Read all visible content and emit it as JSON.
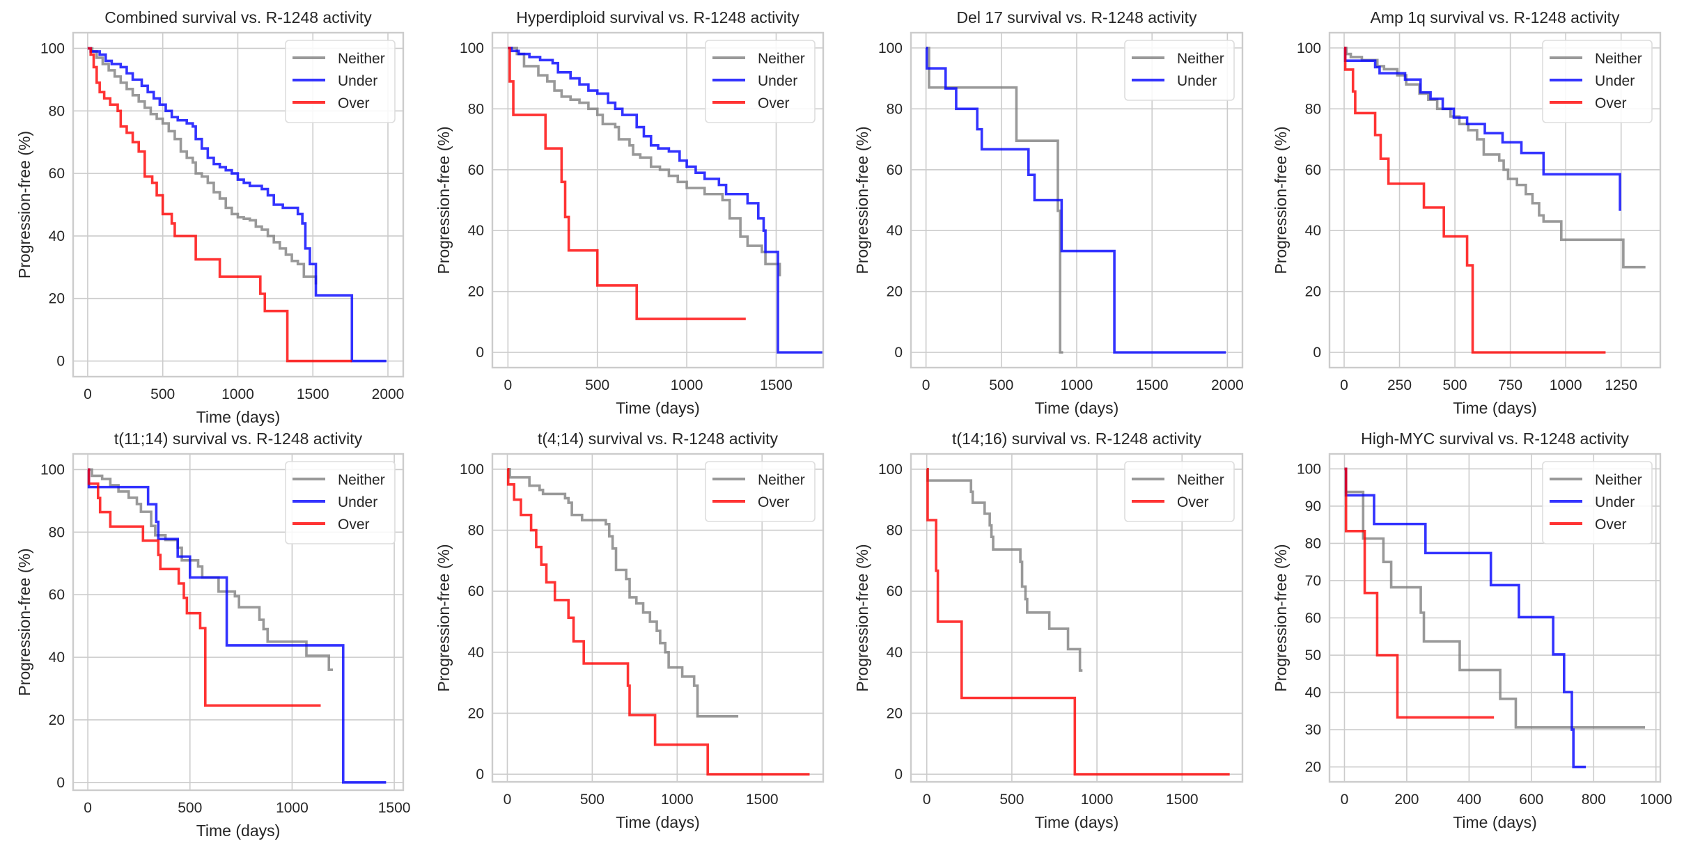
{
  "colors": {
    "Neither": "#808080",
    "Under": "#0000ff",
    "Over": "#ff0000"
  },
  "chart_data": [
    {
      "type": "line",
      "title": "Combined survival vs. R-1248 activity",
      "xlabel": "Time (days)",
      "ylabel": "Progression-free (%)",
      "xlim": [
        -97,
        2102
      ],
      "ylim": [
        -5,
        105
      ],
      "xticks": [
        0,
        500,
        1000,
        1500,
        2000
      ],
      "yticks": [
        0,
        20,
        40,
        60,
        80,
        100
      ],
      "grid": true,
      "legend": "top-right",
      "step": true,
      "series": [
        {
          "name": "Neither",
          "x": [
            0,
            30,
            60,
            100,
            140,
            180,
            220,
            260,
            300,
            340,
            380,
            420,
            460,
            500,
            540,
            580,
            620,
            660,
            700,
            720,
            760,
            800,
            840,
            880,
            920,
            960,
            1000,
            1040,
            1080,
            1120,
            1160,
            1200,
            1240,
            1280,
            1320,
            1360,
            1400,
            1440,
            1480,
            1520
          ],
          "y": [
            100,
            99,
            97,
            95,
            93,
            91,
            89,
            87,
            85,
            83,
            81,
            79,
            77.5,
            76,
            73.5,
            71,
            67,
            65,
            63.5,
            60,
            59,
            57,
            54,
            52,
            49,
            47,
            46,
            45.5,
            45,
            43,
            42,
            40,
            38,
            36,
            34,
            32,
            31,
            27,
            27,
            24.5
          ]
        },
        {
          "name": "Under",
          "x": [
            0,
            20,
            80,
            120,
            160,
            220,
            260,
            300,
            360,
            400,
            440,
            480,
            520,
            560,
            600,
            660,
            700,
            720,
            760,
            800,
            840,
            880,
            920,
            960,
            1000,
            1040,
            1080,
            1160,
            1200,
            1240,
            1300,
            1400,
            1430,
            1450,
            1480,
            1520,
            1760,
            1990
          ],
          "y": [
            100,
            99,
            98,
            96,
            95,
            94,
            92,
            90,
            88,
            86,
            84,
            82,
            80,
            78,
            77,
            76,
            75,
            71,
            68,
            65,
            63,
            62,
            61,
            60,
            58,
            57,
            56,
            55,
            53,
            50,
            49,
            47,
            44,
            36,
            31,
            21,
            0,
            0
          ]
        },
        {
          "name": "Over",
          "x": [
            0,
            20,
            40,
            60,
            80,
            110,
            150,
            200,
            220,
            260,
            300,
            340,
            380,
            430,
            460,
            500,
            560,
            580,
            720,
            880,
            1150,
            1180,
            1330,
            1760
          ],
          "y": [
            100,
            98,
            94,
            89,
            86,
            84,
            82,
            80,
            75,
            73,
            70,
            67,
            59,
            57,
            53,
            47,
            44,
            40,
            32.5,
            27,
            21.5,
            16,
            0,
            0
          ]
        }
      ]
    },
    {
      "type": "line",
      "title": "Hyperdiploid survival vs. R-1248 activity",
      "xlabel": "Time (days)",
      "ylabel": "Progression-free (%)",
      "xlim": [
        -87,
        1763
      ],
      "ylim": [
        -5,
        105
      ],
      "xticks": [
        0,
        500,
        1000,
        1500
      ],
      "yticks": [
        0,
        20,
        40,
        60,
        80,
        100
      ],
      "grid": true,
      "legend": "top-right",
      "step": true,
      "series": [
        {
          "name": "Neither",
          "x": [
            0,
            50,
            90,
            170,
            220,
            260,
            300,
            350,
            400,
            450,
            500,
            530,
            600,
            620,
            680,
            700,
            740,
            800,
            850,
            900,
            950,
            1000,
            1100,
            1200,
            1240,
            1300,
            1340,
            1420,
            1440,
            1520
          ],
          "y": [
            100,
            98,
            94,
            91,
            89,
            86,
            84,
            83,
            82,
            80,
            78,
            75,
            74,
            70,
            68,
            65,
            64,
            61,
            60,
            58,
            56,
            54,
            52,
            50,
            44,
            38,
            35,
            33,
            29,
            25
          ]
        },
        {
          "name": "Under",
          "x": [
            0,
            20,
            60,
            120,
            180,
            250,
            280,
            350,
            400,
            450,
            500,
            560,
            600,
            640,
            700,
            720,
            760,
            800,
            840,
            900,
            960,
            1000,
            1050,
            1100,
            1180,
            1220,
            1340,
            1400,
            1430,
            1440,
            1510,
            1760
          ],
          "y": [
            100,
            99,
            98,
            97,
            96,
            95,
            92,
            90,
            88,
            86,
            85,
            82,
            80,
            78,
            78,
            74,
            71,
            68,
            67,
            66,
            63,
            61,
            59,
            57,
            55,
            52,
            49,
            44,
            40,
            33,
            0,
            0
          ]
        },
        {
          "name": "Over",
          "x": [
            0,
            10,
            30,
            210,
            300,
            320,
            340,
            500,
            720,
            1330
          ],
          "y": [
            100,
            89,
            78,
            67,
            56,
            44.5,
            33.5,
            22,
            11,
            11
          ]
        }
      ]
    },
    {
      "type": "line",
      "title": "Del 17 survival vs. R-1248 activity",
      "xlabel": "Time (days)",
      "ylabel": "Progression-free (%)",
      "xlim": [
        -100,
        2100
      ],
      "ylim": [
        -5,
        105
      ],
      "xticks": [
        0,
        500,
        1000,
        1500,
        2000
      ],
      "yticks": [
        0,
        20,
        40,
        60,
        80,
        100
      ],
      "grid": true,
      "legend": "top-right",
      "step": true,
      "series": [
        {
          "name": "Neither",
          "x": [
            0,
            20,
            600,
            875,
            890,
            910
          ],
          "y": [
            100,
            87,
            69.5,
            46.5,
            0,
            0
          ]
        },
        {
          "name": "Under",
          "x": [
            0,
            5,
            130,
            200,
            340,
            370,
            680,
            720,
            900,
            1250,
            1990
          ],
          "y": [
            100,
            93.3,
            86.7,
            80,
            73.3,
            66.7,
            58.3,
            50,
            33.3,
            0,
            0
          ]
        }
      ]
    },
    {
      "type": "line",
      "title": "Amp 1q survival vs. R-1248 activity",
      "xlabel": "Time (days)",
      "ylabel": "Progression-free (%)",
      "xlim": [
        -66,
        1427
      ],
      "ylim": [
        -5,
        105
      ],
      "xticks": [
        0,
        250,
        500,
        750,
        1000,
        1250
      ],
      "yticks": [
        0,
        20,
        40,
        60,
        80,
        100
      ],
      "grid": true,
      "legend": "top-right",
      "step": true,
      "series": [
        {
          "name": "Neither",
          "x": [
            0,
            10,
            30,
            80,
            150,
            180,
            240,
            280,
            340,
            380,
            420,
            480,
            520,
            560,
            600,
            630,
            700,
            720,
            740,
            780,
            820,
            850,
            880,
            900,
            980,
            1260,
            1360
          ],
          "y": [
            100,
            98,
            97,
            96,
            94,
            93,
            91,
            88,
            85,
            83,
            80,
            77.5,
            75,
            73,
            70,
            65,
            63,
            60,
            57,
            55,
            52,
            49,
            45,
            43,
            37,
            28,
            28
          ]
        },
        {
          "name": "Under",
          "x": [
            0,
            5,
            140,
            160,
            275,
            345,
            390,
            445,
            495,
            555,
            635,
            715,
            800,
            900,
            1245
          ],
          "y": [
            100,
            95.8,
            93.7,
            91.7,
            89.6,
            85.4,
            83.3,
            80,
            77.1,
            75,
            72,
            69,
            65.5,
            58.5,
            46.5
          ]
        },
        {
          "name": "Over",
          "x": [
            0,
            5,
            40,
            50,
            140,
            165,
            200,
            360,
            450,
            555,
            580,
            1180
          ],
          "y": [
            100,
            92.9,
            85.7,
            78.6,
            71.4,
            63.6,
            55.4,
            47.6,
            38.1,
            28.6,
            0,
            0
          ]
        }
      ]
    },
    {
      "type": "line",
      "title": "t(11;14) survival vs. R-1248 activity",
      "xlabel": "Time (days)",
      "ylabel": "Progression-free (%)",
      "xlim": [
        -72,
        1544
      ],
      "ylim": [
        -2.5,
        105
      ],
      "xticks": [
        0,
        500,
        1000,
        1500
      ],
      "yticks": [
        0,
        20,
        40,
        60,
        80,
        100
      ],
      "grid": true,
      "legend": "top-right",
      "step": true,
      "series": [
        {
          "name": "Neither",
          "x": [
            0,
            20,
            70,
            110,
            150,
            200,
            240,
            260,
            310,
            330,
            380,
            440,
            460,
            540,
            560,
            640,
            720,
            740,
            840,
            860,
            880,
            1070,
            1180,
            1200
          ],
          "y": [
            100,
            98,
            97,
            95,
            93,
            91,
            89,
            86.5,
            82,
            79,
            77.5,
            75,
            71,
            69,
            65.5,
            61,
            59.5,
            56,
            52,
            49,
            45,
            40.5,
            36,
            36
          ]
        },
        {
          "name": "Under",
          "x": [
            0,
            5,
            295,
            335,
            345,
            440,
            500,
            680,
            1250,
            1460
          ],
          "y": [
            100,
            94.4,
            88.9,
            83.3,
            77.8,
            72.2,
            65.5,
            43.8,
            0,
            0
          ]
        },
        {
          "name": "Over",
          "x": [
            0,
            5,
            50,
            60,
            110,
            270,
            345,
            355,
            445,
            470,
            485,
            550,
            575,
            1140
          ],
          "y": [
            100,
            95.5,
            90.9,
            86.4,
            81.8,
            77.3,
            72.7,
            68.2,
            63.6,
            59,
            54.1,
            49.3,
            24.6,
            24.6
          ]
        }
      ]
    },
    {
      "type": "line",
      "title": "t(4;14) survival vs. R-1248 activity",
      "xlabel": "Time (days)",
      "ylabel": "Progression-free (%)",
      "xlim": [
        -88,
        1860
      ],
      "ylim": [
        -2.5,
        105
      ],
      "xticks": [
        0,
        500,
        1000,
        1500
      ],
      "yticks": [
        0,
        20,
        40,
        60,
        80,
        100
      ],
      "grid": true,
      "legend": "top-right",
      "step": true,
      "series": [
        {
          "name": "Neither",
          "x": [
            0,
            15,
            130,
            190,
            210,
            340,
            360,
            380,
            440,
            580,
            600,
            620,
            640,
            700,
            720,
            760,
            800,
            840,
            880,
            900,
            930,
            950,
            1030,
            1100,
            1120,
            1360
          ],
          "y": [
            100,
            97.3,
            94.6,
            93.2,
            91.9,
            90.5,
            89,
            85,
            83.3,
            82,
            78,
            74,
            67,
            64,
            58,
            56,
            53,
            50,
            47,
            43,
            40,
            35,
            32,
            29,
            19,
            19
          ]
        },
        {
          "name": "Over",
          "x": [
            0,
            5,
            40,
            80,
            140,
            170,
            200,
            230,
            280,
            360,
            390,
            450,
            710,
            720,
            870,
            1180,
            1780
          ],
          "y": [
            100,
            95,
            90,
            85,
            80,
            74.5,
            68.7,
            62.9,
            57.1,
            51.3,
            43.6,
            36.3,
            29,
            19.4,
            9.7,
            0,
            0
          ]
        }
      ]
    },
    {
      "type": "line",
      "title": "t(14;16) survival vs. R-1248 activity",
      "xlabel": "Time (days)",
      "ylabel": "Progression-free (%)",
      "xlim": [
        -93,
        1855
      ],
      "ylim": [
        -2.5,
        105
      ],
      "xticks": [
        0,
        500,
        1000,
        1500
      ],
      "yticks": [
        0,
        20,
        40,
        60,
        80,
        100
      ],
      "grid": true,
      "legend": "top-right",
      "step": true,
      "series": [
        {
          "name": "Neither",
          "x": [
            0,
            5,
            260,
            270,
            340,
            370,
            380,
            390,
            550,
            560,
            580,
            590,
            600,
            720,
            830,
            900,
            915
          ],
          "y": [
            100,
            96.3,
            92.6,
            89,
            85.4,
            81.6,
            77.8,
            73.7,
            69.6,
            61.5,
            57.4,
            53,
            53,
            47.7,
            41,
            34,
            34
          ]
        },
        {
          "name": "Over",
          "x": [
            0,
            5,
            55,
            65,
            205,
            870,
            1780
          ],
          "y": [
            100,
            83.3,
            66.7,
            50,
            25,
            0,
            0
          ]
        }
      ]
    },
    {
      "type": "line",
      "title": "High-MYC survival vs. R-1248 activity",
      "xlabel": "Time (days)",
      "ylabel": "Progression-free (%)",
      "xlim": [
        -48,
        1014
      ],
      "ylim": [
        16,
        104
      ],
      "xticks": [
        0,
        200,
        400,
        600,
        800,
        1000
      ],
      "yticks": [
        20,
        30,
        40,
        50,
        60,
        70,
        80,
        90,
        100
      ],
      "grid": true,
      "legend": "top-right",
      "step": true,
      "series": [
        {
          "name": "Neither",
          "x": [
            0,
            5,
            60,
            125,
            150,
            245,
            255,
            370,
            500,
            550,
            965
          ],
          "y": [
            100,
            93.8,
            81.3,
            75,
            68.2,
            61.4,
            53.7,
            46,
            38.3,
            30.6,
            30.6
          ]
        },
        {
          "name": "Under",
          "x": [
            0,
            5,
            95,
            260,
            470,
            560,
            670,
            705,
            730,
            735,
            775
          ],
          "y": [
            100,
            92.9,
            85.2,
            77.4,
            68.8,
            60.2,
            50.2,
            40.1,
            30,
            20,
            20
          ]
        },
        {
          "name": "Over",
          "x": [
            0,
            5,
            65,
            105,
            170,
            480
          ],
          "y": [
            100,
            83.3,
            66.7,
            50,
            33.3,
            33.3
          ]
        }
      ]
    }
  ]
}
